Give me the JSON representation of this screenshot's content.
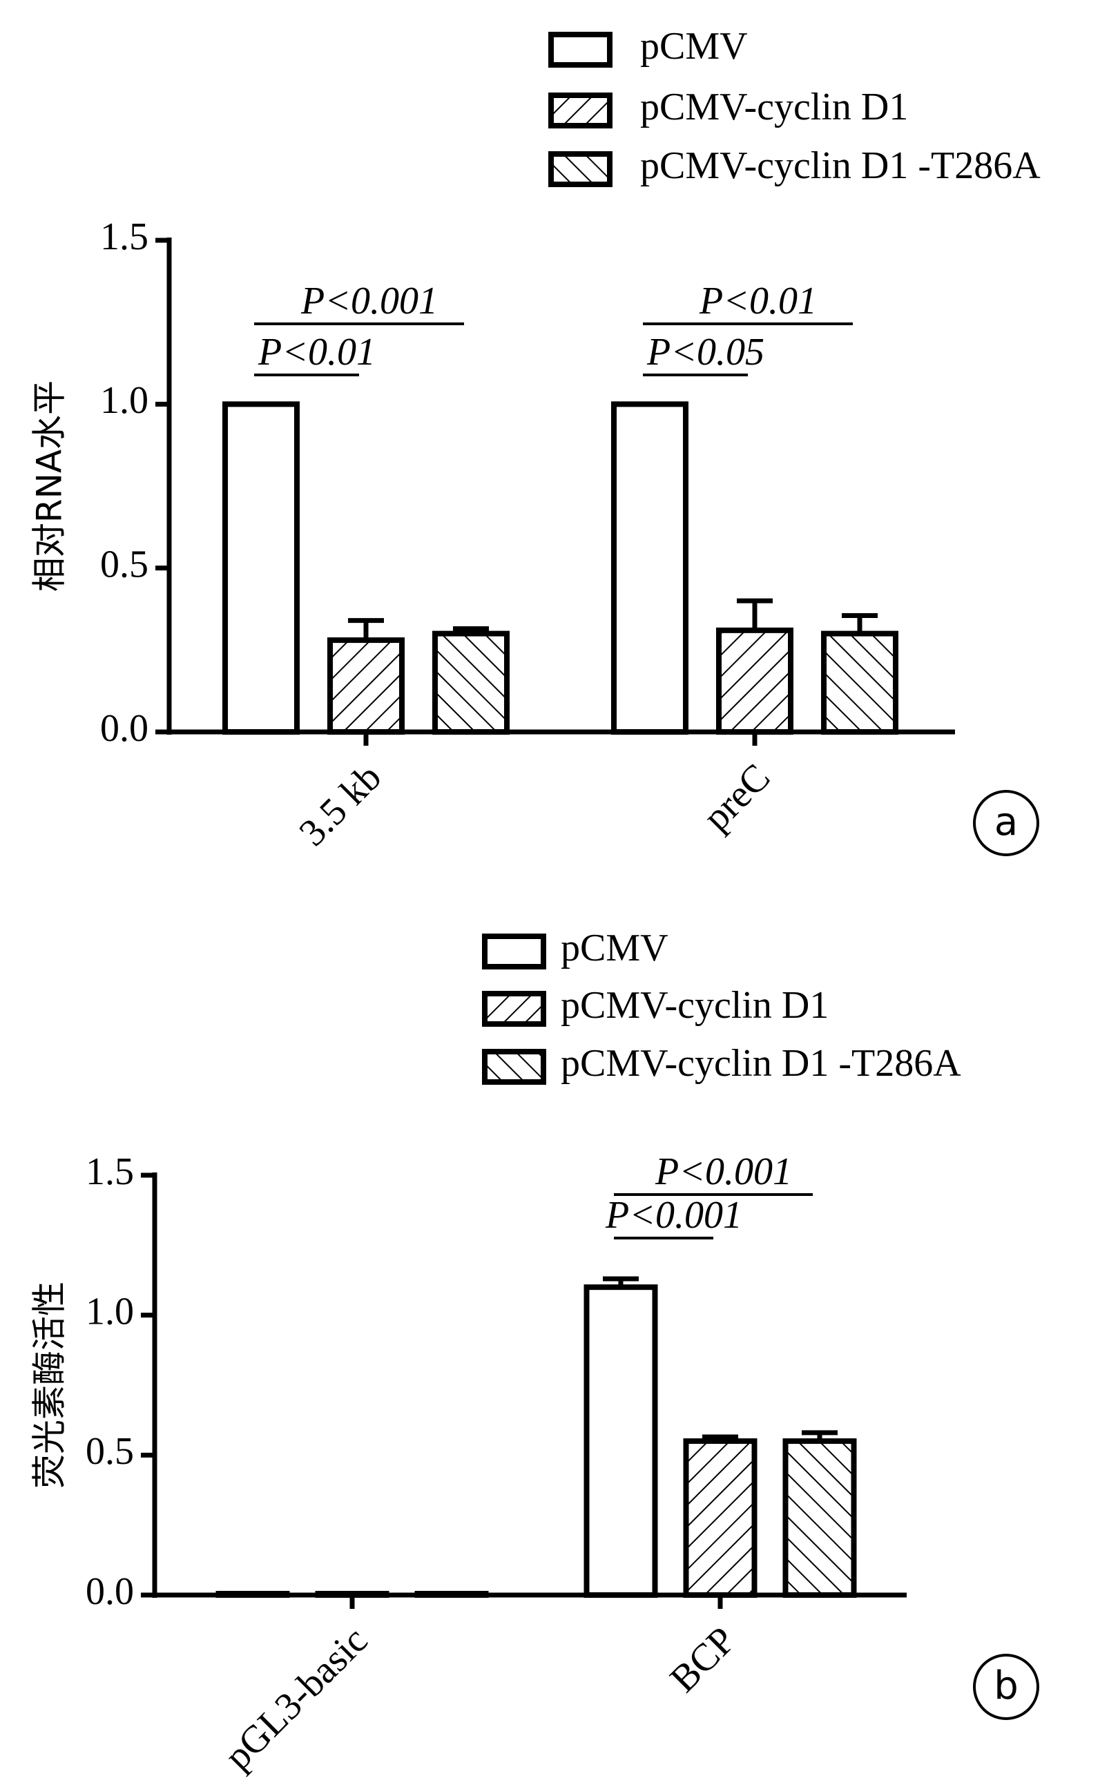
{
  "chart_data": [
    {
      "type": "bar",
      "ylabel": "相对RNA水平",
      "panel_label": "a",
      "categories": [
        "3.5 kb",
        "preC"
      ],
      "series": [
        {
          "name": "pCMV",
          "color": "#000000",
          "pattern": "none",
          "values": [
            1.0,
            1.0
          ],
          "errors": [
            0,
            0
          ]
        },
        {
          "name": "pCMV-cyclin D1",
          "color": "#000000",
          "pattern": "forward",
          "values": [
            0.28,
            0.31
          ],
          "errors": [
            0.06,
            0.09
          ]
        },
        {
          "name": "pCMV-cyclin D1 -T286A",
          "color": "#000000",
          "pattern": "backward",
          "values": [
            0.3,
            0.3
          ],
          "errors": [
            0.015,
            0.055
          ]
        }
      ],
      "ylim": [
        0,
        1.5
      ],
      "yticks": [
        {
          "value": 0,
          "label": "0.0"
        },
        {
          "value": 0.5,
          "label": "0.5"
        },
        {
          "value": 1,
          "label": "1.0"
        },
        {
          "value": 1.5,
          "label": "1.5"
        }
      ],
      "annotations": [
        {
          "text": "P<0.01",
          "category": 0,
          "from": 0,
          "to": 1
        },
        {
          "text": "P<0.001",
          "category": 0,
          "from": 0,
          "to": 2
        },
        {
          "text": "P<0.05",
          "category": 1,
          "from": 0,
          "to": 1
        },
        {
          "text": "P<0.01",
          "category": 1,
          "from": 0,
          "to": 2
        }
      ]
    },
    {
      "type": "bar",
      "ylabel": "荧光素酶活性",
      "panel_label": "b",
      "categories": [
        "pGL3-basic",
        "BCP"
      ],
      "series": [
        {
          "name": "pCMV",
          "color": "#000000",
          "pattern": "none",
          "values": [
            0.005,
            1.1
          ],
          "errors": [
            0,
            0.03
          ]
        },
        {
          "name": "pCMV-cyclin D1",
          "color": "#000000",
          "pattern": "forward",
          "values": [
            0.005,
            0.55
          ],
          "errors": [
            0,
            0.015
          ]
        },
        {
          "name": "pCMV-cyclin D1 -T286A",
          "color": "#000000",
          "pattern": "backward",
          "values": [
            0.005,
            0.55
          ],
          "errors": [
            0,
            0.03
          ]
        }
      ],
      "ylim": [
        0,
        1.5
      ],
      "yticks": [
        {
          "value": 0,
          "label": "0.0"
        },
        {
          "value": 0.5,
          "label": "0.5"
        },
        {
          "value": 1,
          "label": "1.0"
        },
        {
          "value": 1.5,
          "label": "1.5"
        }
      ],
      "annotations": [
        {
          "text": "P<0.001",
          "category": 1,
          "from": 0,
          "to": 1
        },
        {
          "text": "P<0.001",
          "category": 1,
          "from": 0,
          "to": 2
        }
      ]
    }
  ]
}
